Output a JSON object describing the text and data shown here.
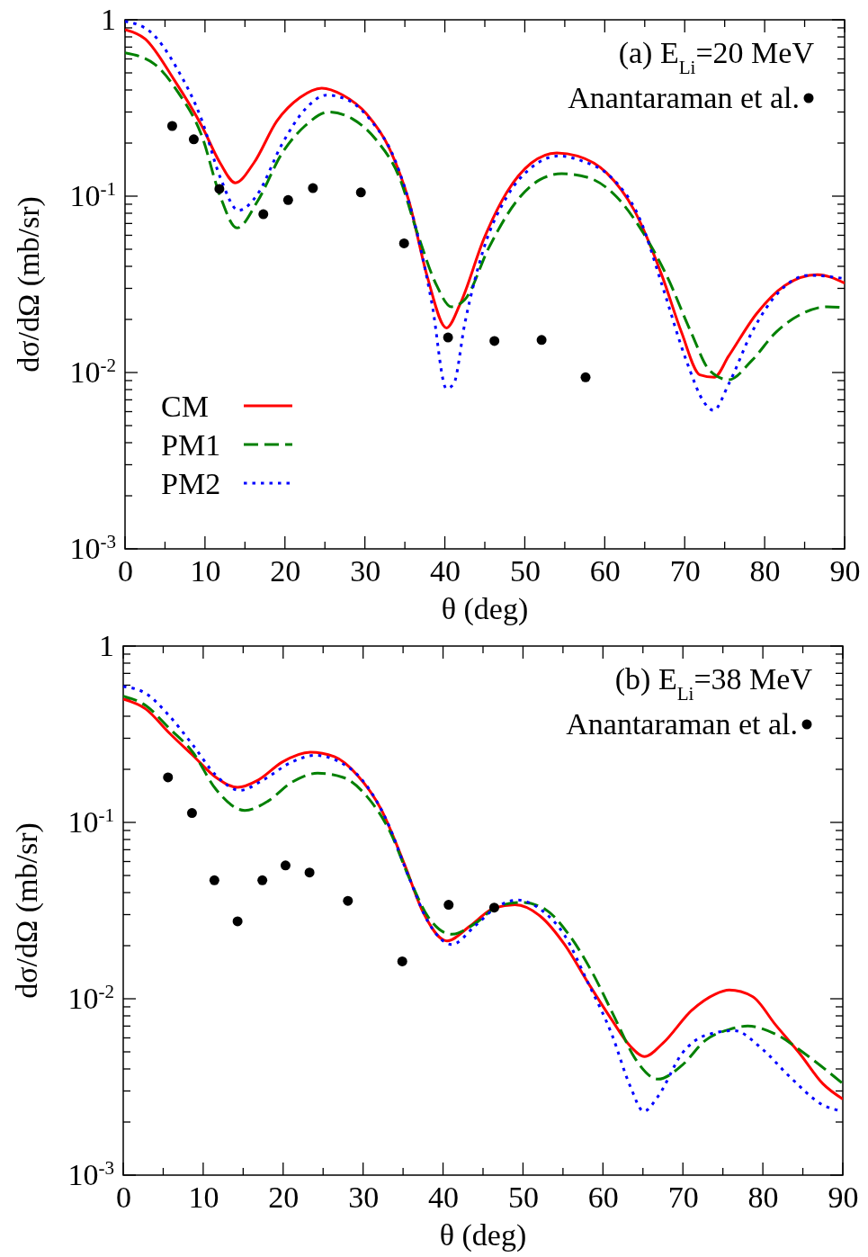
{
  "chart_data": [
    {
      "type": "line",
      "title": "(a) E$_{Li}$=20 MeV",
      "xlabel": "θ (deg)",
      "ylabel": "dσ/dΩ (mb/sr)",
      "log": "y",
      "xlim": [
        0,
        90
      ],
      "ylim": [
        0.001,
        1
      ],
      "xticks": [
        0,
        {
          "value": 5,
          "label": null
        },
        10,
        {
          "value": 15,
          "label": null
        },
        20,
        {
          "value": 25,
          "label": null
        },
        30,
        {
          "value": 35,
          "label": null
        },
        40,
        {
          "value": 45,
          "label": null
        },
        50,
        {
          "value": 55,
          "label": null
        },
        60,
        {
          "value": 65,
          "label": null
        },
        70,
        {
          "value": 75,
          "label": null
        },
        80,
        {
          "value": 85,
          "label": null
        },
        90
      ],
      "yticks": [
        {
          "value": 0.001,
          "label": "10$^{-3}$"
        },
        {
          "value": 0.002,
          "label": null
        },
        {
          "value": 0.003,
          "label": null
        },
        {
          "value": 0.004,
          "label": null
        },
        {
          "value": 0.005,
          "label": null
        },
        {
          "value": 0.006,
          "label": null
        },
        {
          "value": 0.007,
          "label": null
        },
        {
          "value": 0.008,
          "label": null
        },
        {
          "value": 0.009,
          "label": null
        },
        {
          "value": 0.01,
          "label": "10$^{-2}$"
        },
        {
          "value": 0.02,
          "label": null
        },
        {
          "value": 0.03,
          "label": null
        },
        {
          "value": 0.04,
          "label": null
        },
        {
          "value": 0.05,
          "label": null
        },
        {
          "value": 0.06,
          "label": null
        },
        {
          "value": 0.07,
          "label": null
        },
        {
          "value": 0.08,
          "label": null
        },
        {
          "value": 0.09,
          "label": null
        },
        {
          "value": 0.1,
          "label": "10$^{-1}$"
        },
        {
          "value": 0.2,
          "label": null
        },
        {
          "value": 0.3,
          "label": null
        },
        {
          "value": 0.4,
          "label": null
        },
        {
          "value": 0.5,
          "label": null
        },
        {
          "value": 0.6,
          "label": null
        },
        {
          "value": 0.7,
          "label": null
        },
        {
          "value": 0.8,
          "label": null
        },
        {
          "value": 0.9,
          "label": null
        },
        1
      ],
      "legend": "bottom left",
      "grid": false,
      "series": [
        {
          "name": "CM",
          "type": "line",
          "line_style": "solid",
          "color": "#ff0000",
          "x": [
            0,
            2.5,
            6.1,
            9.6,
            11.9,
            13.8,
            16.1,
            19,
            21.9,
            24.6,
            27.2,
            30.2,
            33.1,
            35.5,
            37.8,
            40.2,
            41.9,
            44.9,
            47.8,
            50.8,
            54,
            56.6,
            60.2,
            63.7,
            67.2,
            69.6,
            71.9,
            73.7,
            75.5,
            79,
            82.5,
            86.6,
            90
          ],
          "values": [
            0.88,
            0.78,
            0.46,
            0.25,
            0.154,
            0.119,
            0.154,
            0.267,
            0.363,
            0.41,
            0.375,
            0.293,
            0.185,
            0.094,
            0.035,
            0.0179,
            0.0244,
            0.0575,
            0.106,
            0.154,
            0.176,
            0.169,
            0.136,
            0.083,
            0.035,
            0.0169,
            0.0097,
            0.0094,
            0.0124,
            0.0216,
            0.0311,
            0.0359,
            0.0321
          ]
        },
        {
          "name": "PM1",
          "type": "line",
          "line_style": "dashed",
          "color": "#008000",
          "x": [
            0,
            3.7,
            6.6,
            9.6,
            11.9,
            14,
            16.6,
            19.6,
            22.5,
            25.5,
            28.4,
            31.4,
            34.3,
            36.6,
            39,
            40.8,
            42.5,
            45.5,
            49,
            51.9,
            54.6,
            57.8,
            61.4,
            64.9,
            67.8,
            70.8,
            73.1,
            75.5,
            78.4,
            81.4,
            84.9,
            87.8,
            90
          ],
          "values": [
            0.65,
            0.56,
            0.39,
            0.22,
            0.1,
            0.066,
            0.094,
            0.174,
            0.25,
            0.3,
            0.275,
            0.209,
            0.128,
            0.061,
            0.031,
            0.0236,
            0.0259,
            0.051,
            0.094,
            0.124,
            0.134,
            0.128,
            0.1,
            0.061,
            0.035,
            0.0169,
            0.0103,
            0.0091,
            0.0117,
            0.0169,
            0.0218,
            0.0236,
            0.0233
          ]
        },
        {
          "name": "PM2",
          "type": "line",
          "line_style": "dotted",
          "color": "#0000ff",
          "x": [
            0,
            3.1,
            6.6,
            9.6,
            11.9,
            14.2,
            16.6,
            19.6,
            22.5,
            25.2,
            27.8,
            30.8,
            33.7,
            36.1,
            38.4,
            40.2,
            41.1,
            42.5,
            44.9,
            47.8,
            50.8,
            54.3,
            57.2,
            60.8,
            64.4,
            67.2,
            70.2,
            72.5,
            73.6,
            75.5,
            78.4,
            82,
            85.5,
            90
          ],
          "values": [
            0.98,
            0.86,
            0.52,
            0.27,
            0.128,
            0.083,
            0.103,
            0.196,
            0.31,
            0.374,
            0.352,
            0.267,
            0.163,
            0.074,
            0.0244,
            0.0081,
            0.0086,
            0.019,
            0.051,
            0.1,
            0.145,
            0.169,
            0.158,
            0.128,
            0.074,
            0.031,
            0.0117,
            0.0067,
            0.0061,
            0.0086,
            0.0169,
            0.0293,
            0.0356,
            0.0341
          ]
        },
        {
          "name": "Anantaraman et al.",
          "type": "scatter",
          "marker": "circle",
          "color": "#000000",
          "x": [
            5.9,
            8.6,
            11.8,
            17.3,
            20.4,
            23.5,
            29.5,
            34.9,
            40.4,
            46.2,
            52.1,
            57.6
          ],
          "values": [
            0.25,
            0.21,
            0.11,
            0.079,
            0.095,
            0.111,
            0.105,
            0.054,
            0.0158,
            0.0151,
            0.0153,
            0.0094
          ]
        }
      ]
    },
    {
      "type": "line",
      "title": "(b) E$_{Li}$=38 MeV",
      "xlabel": "θ (deg)",
      "ylabel": "dσ/dΩ (mb/sr)",
      "log": "y",
      "xlim": [
        0,
        90
      ],
      "ylim": [
        0.001,
        1
      ],
      "xticks": [
        0,
        {
          "value": 5,
          "label": null
        },
        10,
        {
          "value": 15,
          "label": null
        },
        20,
        {
          "value": 25,
          "label": null
        },
        30,
        {
          "value": 35,
          "label": null
        },
        40,
        {
          "value": 45,
          "label": null
        },
        50,
        {
          "value": 55,
          "label": null
        },
        60,
        {
          "value": 65,
          "label": null
        },
        70,
        {
          "value": 75,
          "label": null
        },
        80,
        {
          "value": 85,
          "label": null
        },
        90
      ],
      "yticks": [
        {
          "value": 0.001,
          "label": "10$^{-3}$"
        },
        {
          "value": 0.002,
          "label": null
        },
        {
          "value": 0.003,
          "label": null
        },
        {
          "value": 0.004,
          "label": null
        },
        {
          "value": 0.005,
          "label": null
        },
        {
          "value": 0.006,
          "label": null
        },
        {
          "value": 0.007,
          "label": null
        },
        {
          "value": 0.008,
          "label": null
        },
        {
          "value": 0.009,
          "label": null
        },
        {
          "value": 0.01,
          "label": "10$^{-2}$"
        },
        {
          "value": 0.02,
          "label": null
        },
        {
          "value": 0.03,
          "label": null
        },
        {
          "value": 0.04,
          "label": null
        },
        {
          "value": 0.05,
          "label": null
        },
        {
          "value": 0.06,
          "label": null
        },
        {
          "value": 0.07,
          "label": null
        },
        {
          "value": 0.08,
          "label": null
        },
        {
          "value": 0.09,
          "label": null
        },
        {
          "value": 0.1,
          "label": "10$^{-1}$"
        },
        {
          "value": 0.2,
          "label": null
        },
        {
          "value": 0.3,
          "label": null
        },
        {
          "value": 0.4,
          "label": null
        },
        {
          "value": 0.5,
          "label": null
        },
        {
          "value": 0.6,
          "label": null
        },
        {
          "value": 0.7,
          "label": null
        },
        {
          "value": 0.8,
          "label": null
        },
        {
          "value": 0.9,
          "label": null
        },
        1
      ],
      "legend": "top right",
      "grid": false,
      "series": [
        {
          "type": "line",
          "line_style": "solid",
          "color": "#ff0000",
          "x": [
            0,
            2.8,
            5.8,
            8.7,
            11.6,
            14.3,
            16.9,
            19.9,
            23.4,
            26.4,
            29.3,
            32.2,
            35.2,
            37.5,
            40.5,
            43.4,
            46.4,
            49,
            52.2,
            55.2,
            58.1,
            61.1,
            63.4,
            65.2,
            67.5,
            71.1,
            74,
            75.8,
            78.7,
            81.6,
            84.6,
            87.5,
            90
          ],
          "values": [
            0.5,
            0.44,
            0.32,
            0.24,
            0.18,
            0.158,
            0.174,
            0.22,
            0.25,
            0.236,
            0.185,
            0.12,
            0.0575,
            0.031,
            0.0213,
            0.0259,
            0.0327,
            0.0341,
            0.0293,
            0.0203,
            0.0124,
            0.0076,
            0.0054,
            0.0047,
            0.0056,
            0.0086,
            0.0106,
            0.0112,
            0.0103,
            0.0071,
            0.0049,
            0.0033,
            0.0027
          ]
        },
        {
          "type": "line",
          "line_style": "dashed",
          "color": "#008000",
          "x": [
            0,
            2.8,
            5.8,
            8.7,
            11.6,
            15.2,
            18.1,
            21.1,
            24.3,
            27.5,
            30.5,
            33.4,
            35.8,
            38.1,
            41.1,
            44,
            46.9,
            49.9,
            52.8,
            55.8,
            58.7,
            61.6,
            64,
            66.9,
            69.9,
            72.8,
            75.8,
            78.1,
            81.6,
            85.2,
            90
          ],
          "values": [
            0.52,
            0.46,
            0.34,
            0.25,
            0.154,
            0.117,
            0.132,
            0.169,
            0.19,
            0.18,
            0.14,
            0.088,
            0.048,
            0.0293,
            0.0232,
            0.0267,
            0.0335,
            0.0352,
            0.0321,
            0.0229,
            0.014,
            0.0076,
            0.0046,
            0.0035,
            0.0042,
            0.0058,
            0.0067,
            0.007,
            0.0063,
            0.0049,
            0.0033
          ]
        },
        {
          "type": "line",
          "line_style": "dotted",
          "color": "#0000ff",
          "x": [
            0,
            2.8,
            5.8,
            8.7,
            11.6,
            14.6,
            17.5,
            21.1,
            24,
            26.9,
            29.9,
            32.8,
            35.8,
            38.1,
            41.1,
            44,
            46.9,
            49.3,
            52.2,
            55.2,
            58.1,
            61.1,
            63.4,
            65.1,
            66.9,
            69.9,
            72.8,
            76.4,
            79.9,
            83.4,
            87.5,
            90
          ],
          "values": [
            0.59,
            0.54,
            0.4,
            0.275,
            0.185,
            0.152,
            0.174,
            0.22,
            0.24,
            0.222,
            0.174,
            0.106,
            0.048,
            0.0275,
            0.0203,
            0.0259,
            0.0335,
            0.0363,
            0.0321,
            0.0229,
            0.0124,
            0.0063,
            0.0032,
            0.0023,
            0.0028,
            0.0049,
            0.0062,
            0.0066,
            0.0052,
            0.0036,
            0.0025,
            0.0023
          ]
        },
        {
          "name": "Anantaraman et al.",
          "type": "scatter",
          "marker": "circle",
          "color": "#000000",
          "x": [
            5.6,
            8.6,
            11.4,
            14.3,
            17.4,
            20.3,
            23.3,
            28.1,
            34.9,
            40.7,
            46.4
          ],
          "values": [
            0.18,
            0.113,
            0.047,
            0.0275,
            0.047,
            0.057,
            0.052,
            0.0359,
            0.0163,
            0.0341,
            0.0329
          ]
        }
      ]
    }
  ]
}
